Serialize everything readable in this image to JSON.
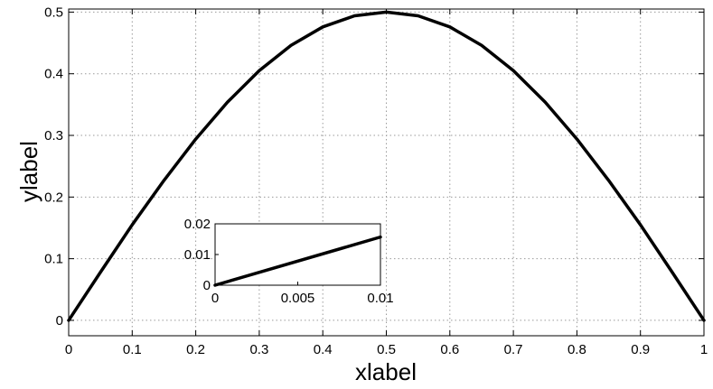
{
  "chart_data": [
    {
      "type": "line",
      "title": "",
      "xlabel": "xlabel",
      "ylabel": "ylabel",
      "xlim": [
        0,
        1
      ],
      "ylim": [
        -0.025,
        0.505
      ],
      "grid": true,
      "xticks": [
        0,
        0.1,
        0.2,
        0.3,
        0.4,
        0.5,
        0.6,
        0.7,
        0.8,
        0.9,
        1
      ],
      "xtick_labels": [
        "0",
        "0.1",
        "0.2",
        "0.3",
        "0.4",
        "0.5",
        "0.6",
        "0.7",
        "0.8",
        "0.9",
        "1"
      ],
      "yticks": [
        0,
        0.1,
        0.2,
        0.3,
        0.4,
        0.5
      ],
      "ytick_labels": [
        "0",
        "0.1",
        "0.2",
        "0.3",
        "0.4",
        "0.5"
      ],
      "series": [
        {
          "x": [
            0,
            0.05,
            0.1,
            0.15,
            0.2,
            0.25,
            0.3,
            0.35,
            0.4,
            0.45,
            0.5,
            0.55,
            0.6,
            0.65,
            0.7,
            0.75,
            0.8,
            0.85,
            0.9,
            0.95,
            1
          ],
          "y": [
            0,
            0.078,
            0.155,
            0.227,
            0.294,
            0.354,
            0.405,
            0.446,
            0.476,
            0.494,
            0.5,
            0.494,
            0.476,
            0.446,
            0.405,
            0.354,
            0.294,
            0.227,
            0.155,
            0.078,
            0
          ],
          "color": "#000000"
        }
      ]
    },
    {
      "type": "line",
      "title": "",
      "xlabel": "",
      "ylabel": "",
      "inset": true,
      "xlim": [
        0,
        0.01
      ],
      "ylim": [
        0,
        0.02
      ],
      "grid": false,
      "xticks": [
        0,
        0.005,
        0.01
      ],
      "xtick_labels": [
        "0",
        "0.005",
        "0.01"
      ],
      "yticks": [
        0,
        0.01,
        0.02
      ],
      "ytick_labels": [
        "0",
        "0.01",
        "0.02"
      ],
      "series": [
        {
          "x": [
            0,
            0.01
          ],
          "y": [
            0,
            0.0157
          ],
          "color": "#000000"
        }
      ]
    }
  ]
}
